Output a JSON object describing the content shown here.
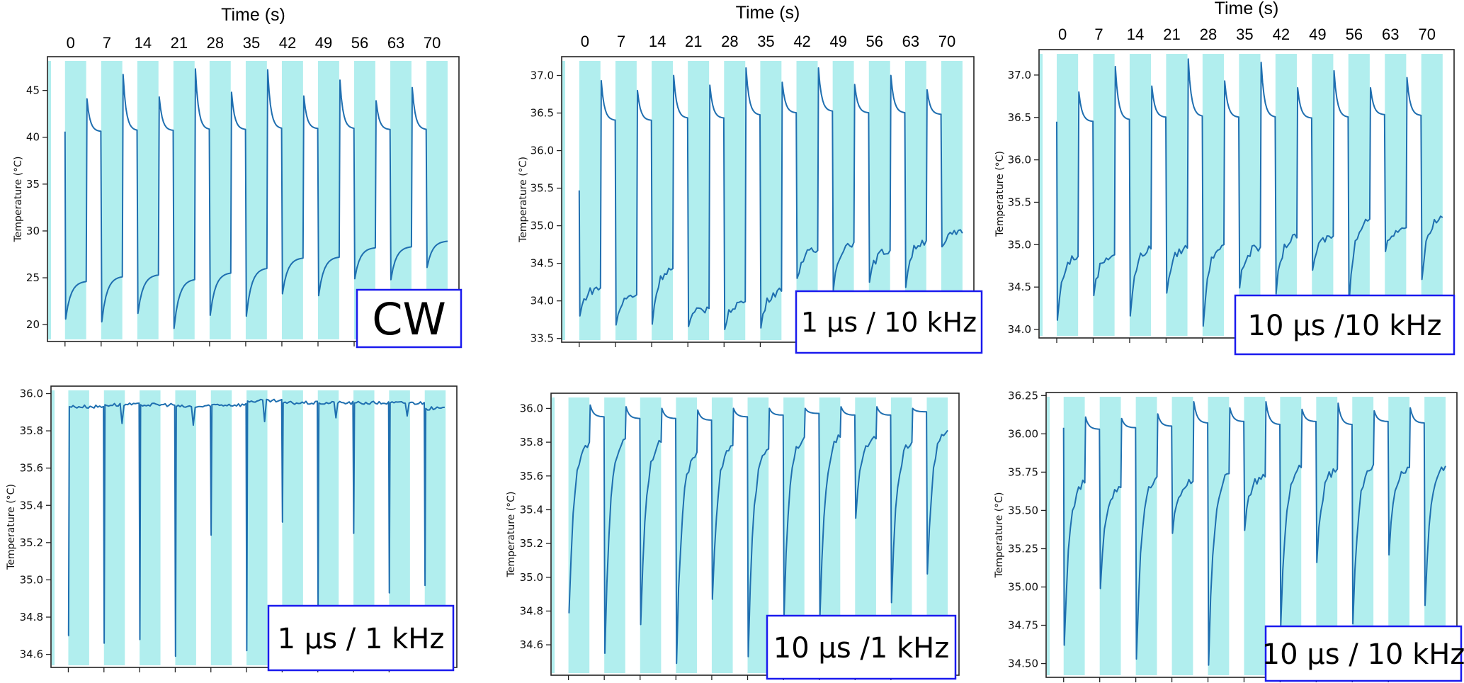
{
  "figure": {
    "colors": {
      "band": "#b1eeee",
      "line": "#1f6fb0",
      "frame": "#222222",
      "annotation_border": "#1a1aee"
    }
  },
  "chart_data": [
    {
      "type": "line",
      "panel": "top-left",
      "condition": "CW",
      "title": "",
      "xlabel": "Time (s)",
      "x_tick_labels": [
        "0",
        "7",
        "14",
        "21",
        "28",
        "35",
        "42",
        "49",
        "56",
        "63",
        "70"
      ],
      "ylabel": "Temperature (°C)",
      "ylim": [
        18.2,
        48.6
      ],
      "yticks": [
        20,
        25,
        30,
        35,
        40,
        45
      ],
      "ytick_labels": [
        "20",
        "25",
        "30",
        "35",
        "40",
        "45"
      ],
      "shaded_bands": {
        "period_s": 7,
        "width_s": 4.1,
        "count": 11
      },
      "start_value": 40.6,
      "cycles": [
        {
          "min": 20.6,
          "end": 24.6,
          "peak": 44.1,
          "plateau": 40.6
        },
        {
          "min": 20.3,
          "end": 25.1,
          "peak": 46.7,
          "plateau": 40.7
        },
        {
          "min": 21.2,
          "end": 25.3,
          "peak": 44.3,
          "plateau": 40.7
        },
        {
          "min": 19.6,
          "end": 24.8,
          "peak": 47.3,
          "plateau": 40.8
        },
        {
          "min": 21.0,
          "end": 25.5,
          "peak": 44.8,
          "plateau": 40.8
        },
        {
          "min": 20.9,
          "end": 26.0,
          "peak": 47.2,
          "plateau": 40.9
        },
        {
          "min": 23.3,
          "end": 27.1,
          "peak": 44.4,
          "plateau": 40.9
        },
        {
          "min": 23.1,
          "end": 27.2,
          "peak": 46.1,
          "plateau": 40.9
        },
        {
          "min": 24.9,
          "end": 28.2,
          "peak": 43.9,
          "plateau": 40.8
        },
        {
          "min": 24.8,
          "end": 28.3,
          "peak": 45.3,
          "plateau": 40.8
        },
        {
          "min": 26.1,
          "end": 28.9,
          "peak": null,
          "plateau": null
        }
      ],
      "annotation": "CW"
    },
    {
      "type": "line",
      "panel": "top-middle",
      "condition": "1 µs / 10 kHz",
      "title": "",
      "xlabel": "Time (s)",
      "x_tick_labels": [
        "0",
        "7",
        "14",
        "21",
        "28",
        "35",
        "42",
        "49",
        "56",
        "63",
        "70"
      ],
      "ylabel": "Temperature (°C)",
      "ylim": [
        33.45,
        37.25
      ],
      "yticks": [
        33.5,
        34.0,
        34.5,
        35.0,
        35.5,
        36.0,
        36.5,
        37.0
      ],
      "ytick_labels": [
        "33.5",
        "34.0",
        "34.5",
        "35.0",
        "35.5",
        "36.0",
        "36.5",
        "37.0"
      ],
      "shaded_bands": {
        "period_s": 7,
        "width_s": 4.1,
        "count": 11
      },
      "start_value": 35.47,
      "cycles": [
        {
          "min": 33.8,
          "end": 34.17,
          "peak": 36.93,
          "plateau": 36.4
        },
        {
          "min": 33.68,
          "end": 34.08,
          "peak": 36.8,
          "plateau": 36.4
        },
        {
          "min": 33.69,
          "end": 34.43,
          "peak": 37.0,
          "plateau": 36.43
        },
        {
          "min": 33.66,
          "end": 33.9,
          "peak": 36.87,
          "plateau": 36.43
        },
        {
          "min": 33.62,
          "end": 33.99,
          "peak": 37.1,
          "plateau": 36.47
        },
        {
          "min": 33.64,
          "end": 34.13,
          "peak": 36.91,
          "plateau": 36.5
        },
        {
          "min": 34.3,
          "end": 34.67,
          "peak": 37.1,
          "plateau": 36.52
        },
        {
          "min": 34.14,
          "end": 34.78,
          "peak": 36.88,
          "plateau": 36.5
        },
        {
          "min": 34.25,
          "end": 34.67,
          "peak": 37.0,
          "plateau": 36.5
        },
        {
          "min": 34.18,
          "end": 34.8,
          "peak": 36.81,
          "plateau": 36.48
        },
        {
          "min": 34.72,
          "end": 34.9,
          "peak": null,
          "plateau": null
        }
      ],
      "annotation": "1 µs / 10 kHz"
    },
    {
      "type": "line",
      "panel": "top-right",
      "condition": "10 µs / 10 kHz",
      "title": "",
      "xlabel": "Time (s)",
      "x_tick_labels": [
        "0",
        "7",
        "14",
        "21",
        "28",
        "35",
        "42",
        "49",
        "56",
        "63",
        "70"
      ],
      "ylabel": "Temperature (°C)",
      "ylim": [
        33.9,
        37.3
      ],
      "yticks": [
        34.0,
        34.5,
        35.0,
        35.5,
        36.0,
        36.5,
        37.0
      ],
      "ytick_labels": [
        "34.0",
        "34.5",
        "35.0",
        "35.5",
        "36.0",
        "36.5",
        "37.0"
      ],
      "shaded_bands": {
        "period_s": 7,
        "width_s": 4.1,
        "count": 11
      },
      "start_value": 36.45,
      "cycles": [
        {
          "min": 34.11,
          "end": 34.86,
          "peak": 36.8,
          "plateau": 36.45
        },
        {
          "min": 34.4,
          "end": 34.88,
          "peak": 37.1,
          "plateau": 36.47
        },
        {
          "min": 34.16,
          "end": 34.95,
          "peak": 36.87,
          "plateau": 36.5
        },
        {
          "min": 34.43,
          "end": 34.96,
          "peak": 37.19,
          "plateau": 36.51
        },
        {
          "min": 34.04,
          "end": 35.0,
          "peak": 36.93,
          "plateau": 36.5
        },
        {
          "min": 34.49,
          "end": 34.97,
          "peak": 37.15,
          "plateau": 36.5
        },
        {
          "min": 34.42,
          "end": 35.08,
          "peak": 36.85,
          "plateau": 36.49
        },
        {
          "min": 34.7,
          "end": 35.1,
          "peak": 37.05,
          "plateau": 36.5
        },
        {
          "min": 34.3,
          "end": 35.3,
          "peak": 36.85,
          "plateau": 36.53
        },
        {
          "min": 34.92,
          "end": 35.2,
          "peak": 36.97,
          "plateau": 36.52
        },
        {
          "min": 34.59,
          "end": 35.32,
          "peak": null,
          "plateau": null
        }
      ],
      "annotation": "10 µs /10 kHz"
    },
    {
      "type": "line",
      "panel": "bottom-left",
      "condition": "1 µs / 1 kHz",
      "title": "",
      "xlabel": "",
      "ylabel": "Temperature (°C)",
      "ylim": [
        34.53,
        36.04
      ],
      "yticks": [
        34.6,
        34.8,
        35.0,
        35.2,
        35.4,
        35.6,
        35.8,
        36.0
      ],
      "ytick_labels": [
        "34.6",
        "34.8",
        "35.0",
        "35.2",
        "35.4",
        "35.6",
        "35.8",
        "36.0"
      ],
      "shaded_bands": {
        "period_s": 7,
        "width_s": 4.1,
        "count": 11
      },
      "start_value": 34.7,
      "cycles": [
        {
          "min": 34.7,
          "mid_dip": null,
          "level": 35.93
        },
        {
          "min": 34.66,
          "mid_dip": 35.84,
          "level": 35.94
        },
        {
          "min": 34.68,
          "mid_dip": null,
          "level": 35.94
        },
        {
          "min": 34.59,
          "mid_dip": 35.83,
          "level": 35.93
        },
        {
          "min": 35.24,
          "mid_dip": null,
          "level": 35.94
        },
        {
          "min": 34.62,
          "mid_dip": 35.85,
          "level": 35.96
        },
        {
          "min": 35.31,
          "mid_dip": null,
          "level": 35.95
        },
        {
          "min": 34.84,
          "mid_dip": 35.87,
          "level": 35.95
        },
        {
          "min": 35.25,
          "mid_dip": null,
          "level": 35.95
        },
        {
          "min": 34.93,
          "mid_dip": 35.88,
          "level": 35.95
        },
        {
          "min": 34.97,
          "mid_dip": null,
          "level": 35.92
        }
      ],
      "annotation": "1 µs / 1 kHz"
    },
    {
      "type": "line",
      "panel": "bottom-middle",
      "condition": "10 µs / 1 kHz",
      "title": "",
      "xlabel": "",
      "ylabel": "Temperature (°C)",
      "ylim": [
        34.42,
        36.09
      ],
      "yticks": [
        34.6,
        34.8,
        35.0,
        35.2,
        35.4,
        35.6,
        35.8,
        36.0
      ],
      "ytick_labels": [
        "34.6",
        "34.8",
        "35.0",
        "35.2",
        "35.4",
        "35.6",
        "35.8",
        "36.0"
      ],
      "shaded_bands": {
        "period_s": 7,
        "width_s": 4.1,
        "count": 11
      },
      "start_value": 34.79,
      "cycles": [
        {
          "min": 34.79,
          "end": 35.8,
          "peak": 36.02,
          "plateau": 35.95
        },
        {
          "min": 34.55,
          "end": 35.82,
          "peak": 36.01,
          "plateau": 35.94
        },
        {
          "min": 34.72,
          "end": 35.8,
          "peak": 36.0,
          "plateau": 35.94
        },
        {
          "min": 34.49,
          "end": 35.74,
          "peak": 35.99,
          "plateau": 35.93
        },
        {
          "min": 34.87,
          "end": 35.78,
          "peak": 36.0,
          "plateau": 35.95
        },
        {
          "min": 34.53,
          "end": 35.76,
          "peak": 36.0,
          "plateau": 35.96
        },
        {
          "min": 34.77,
          "end": 35.83,
          "peak": 36.0,
          "plateau": 35.97
        },
        {
          "min": 34.76,
          "end": 35.83,
          "peak": 36.01,
          "plateau": 35.96
        },
        {
          "min": 35.35,
          "end": 35.82,
          "peak": 36.01,
          "plateau": 35.96
        },
        {
          "min": 34.85,
          "end": 35.8,
          "peak": 36.0,
          "plateau": 35.98
        },
        {
          "min": 35.02,
          "end": 35.87,
          "peak": null,
          "plateau": null
        }
      ],
      "annotation": "10 µs /1 kHz"
    },
    {
      "type": "line",
      "panel": "bottom-right",
      "condition": "10 µs / 10 kHz",
      "title": "",
      "xlabel": "",
      "ylabel": "Temperature (°C)",
      "ylim": [
        34.41,
        36.27
      ],
      "yticks": [
        34.5,
        34.75,
        35.0,
        35.25,
        35.5,
        35.75,
        36.0,
        36.25
      ],
      "ytick_labels": [
        "34.50",
        "34.75",
        "35.00",
        "35.25",
        "35.50",
        "35.75",
        "36.00",
        "36.25"
      ],
      "shaded_bands": {
        "period_s": 7,
        "width_s": 4.1,
        "count": 11
      },
      "start_value": 36.04,
      "cycles": [
        {
          "min": 34.62,
          "end": 35.68,
          "peak": 36.11,
          "plateau": 36.03
        },
        {
          "min": 34.99,
          "end": 35.65,
          "peak": 36.1,
          "plateau": 36.04
        },
        {
          "min": 34.53,
          "end": 35.72,
          "peak": 36.13,
          "plateau": 36.05
        },
        {
          "min": 35.35,
          "end": 35.69,
          "peak": 36.21,
          "plateau": 36.07
        },
        {
          "min": 34.49,
          "end": 35.74,
          "peak": 36.17,
          "plateau": 36.08
        },
        {
          "min": 35.37,
          "end": 35.72,
          "peak": 36.21,
          "plateau": 36.06
        },
        {
          "min": 34.75,
          "end": 35.78,
          "peak": 36.16,
          "plateau": 36.08
        },
        {
          "min": 35.16,
          "end": 35.77,
          "peak": 36.2,
          "plateau": 36.06
        },
        {
          "min": 34.76,
          "end": 35.8,
          "peak": 36.15,
          "plateau": 36.08
        },
        {
          "min": 35.21,
          "end": 35.78,
          "peak": 36.17,
          "plateau": 36.07
        },
        {
          "min": 34.88,
          "end": 35.79,
          "peak": null,
          "plateau": null
        }
      ],
      "annotation": "10 µs / 10 kHz"
    }
  ]
}
